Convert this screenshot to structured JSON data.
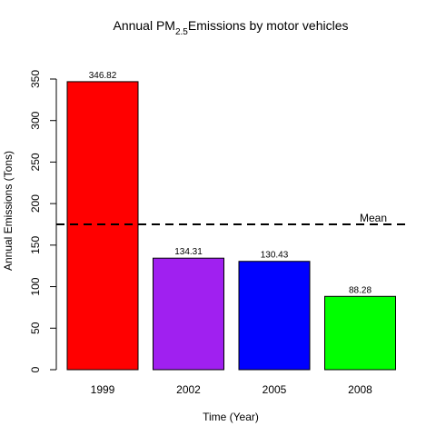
{
  "chart_data": {
    "type": "bar",
    "title_main": "Annual PM",
    "title_sub": "2.5",
    "title_rest": "Emissions by motor vehicles",
    "xlabel": "Time (Year)",
    "ylabel": "Annual Emissions (Tons)",
    "categories": [
      "1999",
      "2002",
      "2005",
      "2008"
    ],
    "values": [
      346.82,
      134.31,
      130.43,
      88.28
    ],
    "value_labels": [
      "346.82",
      "134.31",
      "130.43",
      "88.28"
    ],
    "bar_colors": [
      "#ff0000",
      "#a020f0",
      "#0000ff",
      "#00ff00"
    ],
    "ylim": [
      0,
      350
    ],
    "yticks": [
      0,
      50,
      100,
      150,
      200,
      250,
      300,
      350
    ],
    "grid": false,
    "mean": {
      "value": 175.0,
      "label": "Mean",
      "style": "dashed"
    }
  }
}
